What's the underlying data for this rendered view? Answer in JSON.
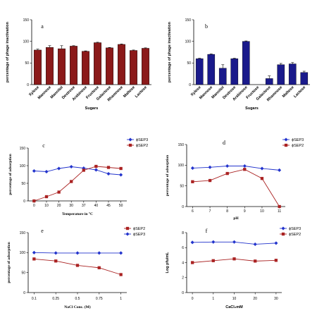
{
  "chart_data": [
    {
      "id": "a",
      "type": "bar",
      "panel_label": "a",
      "xlabel": "Sugars",
      "ylabel": "percentage of phage inactivation",
      "ylim": [
        0,
        150
      ],
      "yticks": [
        0,
        50,
        100,
        150
      ],
      "color": "#8b1a1a",
      "categories": [
        "Xylose",
        "Mannose",
        "Mannitol",
        "Dextrose",
        "Arabinose",
        "Fructose",
        "Galactose",
        "Rhamnose",
        "Maltose",
        "Lactose"
      ],
      "values": [
        80,
        86,
        83,
        89,
        77,
        97,
        85,
        93,
        79,
        84
      ],
      "errors": [
        2,
        4,
        7,
        1,
        1,
        1,
        1,
        1,
        1,
        1
      ]
    },
    {
      "id": "b",
      "type": "bar",
      "panel_label": "b",
      "xlabel": "Sugars",
      "ylabel": "percentage of phage inactivation",
      "ylim": [
        0,
        150
      ],
      "yticks": [
        0,
        50,
        100,
        150
      ],
      "color": "#1a1a8b",
      "categories": [
        "Xylose",
        "Mannose",
        "Mannitol",
        "Dextrose",
        "Arabinose",
        "Fructose",
        "Galactose",
        "Rhamnose",
        "Maltose",
        "Lactose"
      ],
      "values": [
        60,
        70,
        38,
        60,
        100,
        0,
        14,
        46,
        48,
        28
      ],
      "errors": [
        1,
        1,
        8,
        1,
        1,
        0,
        6,
        3,
        3,
        3
      ]
    },
    {
      "id": "c",
      "type": "line",
      "panel_label": "c",
      "xlabel": "Temperature in °C",
      "ylabel": "percentage of adsorption",
      "ylim": [
        0,
        150
      ],
      "yticks": [
        0,
        50,
        100,
        150
      ],
      "xticks": [
        "0",
        "10",
        "20",
        "30",
        "37",
        "40",
        "45",
        "50"
      ],
      "series": [
        {
          "name": "ϕSEP3",
          "color": "#2233cc",
          "marker": "diamond",
          "values": [
            85,
            83,
            92,
            97,
            93,
            88,
            77,
            74
          ]
        },
        {
          "name": "ϕSEP2",
          "color": "#aa2222",
          "marker": "square",
          "values": [
            0,
            12,
            25,
            55,
            87,
            98,
            95,
            92
          ]
        }
      ]
    },
    {
      "id": "d",
      "type": "line",
      "panel_label": "d",
      "xlabel": "pH",
      "ylabel": "percentage of adsorption",
      "ylim": [
        0,
        150
      ],
      "yticks": [
        0,
        50,
        100,
        150
      ],
      "xticks": [
        "6",
        "7",
        "8",
        "9",
        "10",
        "11"
      ],
      "series": [
        {
          "name": "ϕSEP3",
          "color": "#2233cc",
          "marker": "diamond",
          "values": [
            93,
            95,
            98,
            98,
            92,
            88
          ]
        },
        {
          "name": "ϕSEP2",
          "color": "#aa2222",
          "marker": "square",
          "values": [
            60,
            63,
            80,
            90,
            68,
            0
          ]
        }
      ]
    },
    {
      "id": "e",
      "type": "line",
      "panel_label": "e",
      "xlabel": "NaCl Conc. (M)",
      "ylabel": "percentage of adsorption",
      "ylim": [
        0,
        150
      ],
      "yticks": [
        0,
        50,
        100,
        150
      ],
      "xticks": [
        "0.1",
        "0.25",
        "0.5",
        "0.75",
        "1"
      ],
      "series": [
        {
          "name": "ϕSEP2",
          "color": "#aa2222",
          "marker": "square",
          "values": [
            84,
            79,
            68,
            62,
            45
          ]
        },
        {
          "name": "ϕSEP3",
          "color": "#2233cc",
          "marker": "diamond",
          "values": [
            100,
            99,
            99,
            99,
            99
          ]
        }
      ]
    },
    {
      "id": "f",
      "type": "line",
      "panel_label": "f",
      "xlabel": "CaCl₂mM",
      "ylabel": "Log pfu/mL",
      "ylim": [
        0,
        8
      ],
      "yticks": [
        0,
        2,
        4,
        6,
        8
      ],
      "xticks": [
        "0",
        "1",
        "10",
        "20",
        "30"
      ],
      "series": [
        {
          "name": "ϕSEP3",
          "color": "#2233cc",
          "marker": "diamond",
          "values": [
            6.7,
            6.75,
            6.75,
            6.45,
            6.6
          ]
        },
        {
          "name": "ϕSEP2",
          "color": "#aa2222",
          "marker": "square",
          "values": [
            4.0,
            4.25,
            4.5,
            4.2,
            4.3
          ]
        }
      ]
    }
  ]
}
